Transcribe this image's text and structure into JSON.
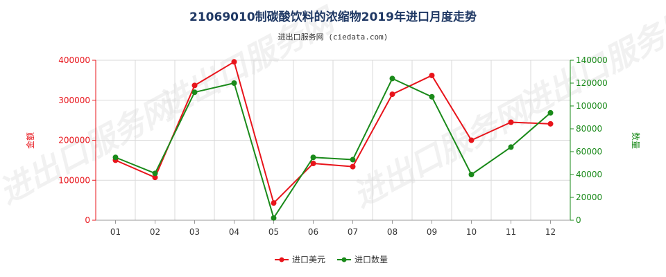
{
  "header": {
    "title": "21069010制碳酸饮料的浓缩物2019年进口月度走势",
    "subtitle": "进出口服务网 (ciedata.com)"
  },
  "watermark": "进出口服务网",
  "colors": {
    "series_usd": "#e8141b",
    "series_qty": "#1a8a1a",
    "grid": "#d9d9d9",
    "axis": "#999999"
  },
  "chart_data": {
    "type": "line",
    "categories": [
      "01",
      "02",
      "03",
      "04",
      "05",
      "06",
      "07",
      "08",
      "09",
      "10",
      "11",
      "12"
    ],
    "series": [
      {
        "name": "进口美元",
        "axis": "left",
        "values": [
          150000,
          107000,
          337000,
          396000,
          43000,
          142000,
          134000,
          315000,
          362000,
          200000,
          245000,
          241000
        ]
      },
      {
        "name": "进口数量",
        "axis": "right",
        "values": [
          55000,
          41000,
          112000,
          120000,
          2000,
          55000,
          53000,
          124000,
          108000,
          40000,
          64000,
          94000
        ]
      }
    ],
    "y_left": {
      "label": "金额",
      "ylim": [
        0,
        400000
      ],
      "ticks": [
        "0",
        "100000",
        "200000",
        "300000",
        "400000"
      ]
    },
    "y_right": {
      "label": "数量",
      "ylim": [
        0,
        140000
      ],
      "ticks": [
        "0",
        "20000",
        "40000",
        "60000",
        "80000",
        "100000",
        "120000",
        "140000"
      ]
    },
    "grid": true,
    "legend_placement": "bottom-center"
  }
}
